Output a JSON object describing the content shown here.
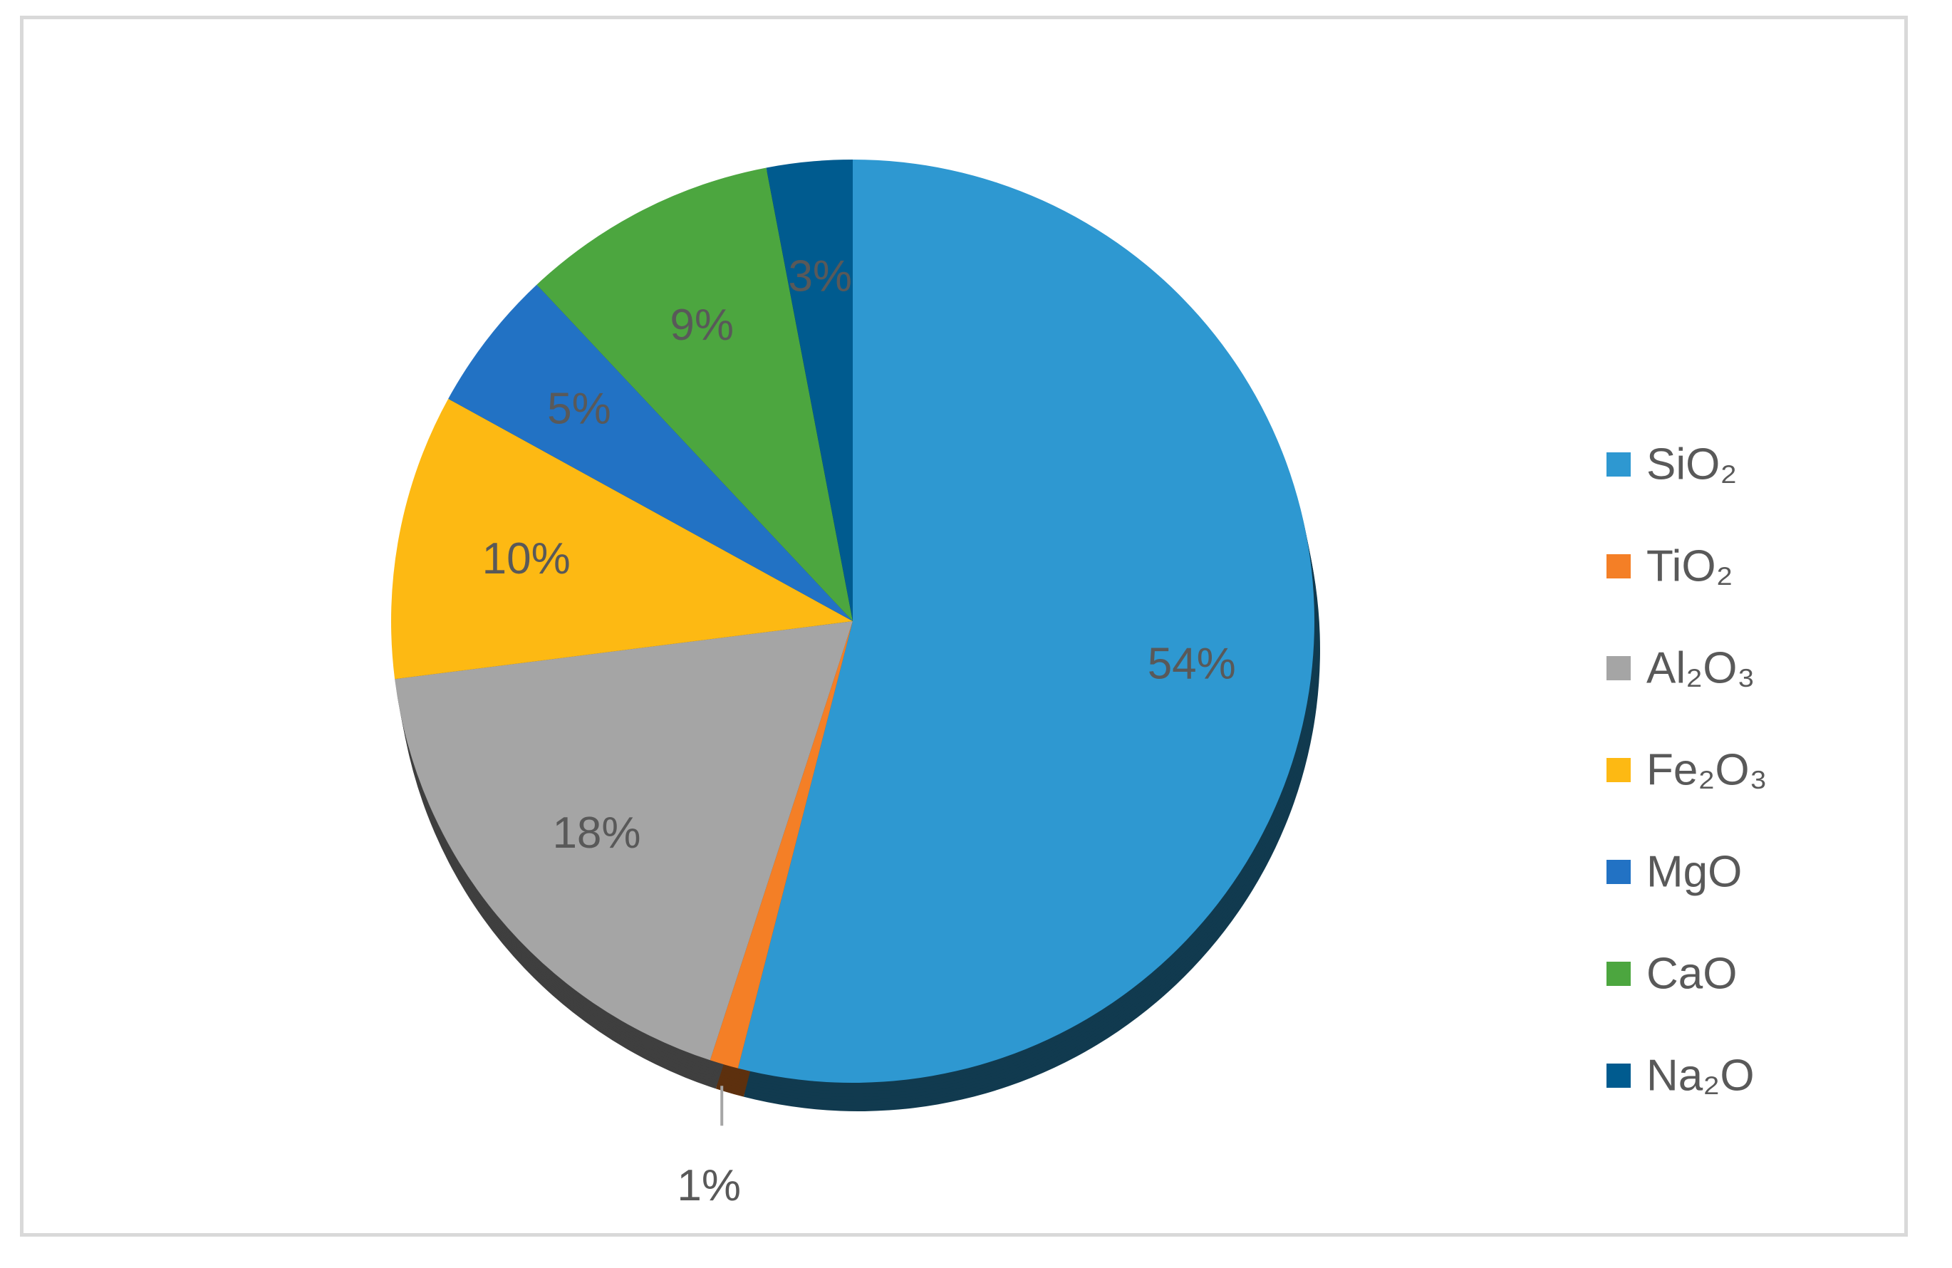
{
  "chart_data": {
    "type": "pie",
    "title": "",
    "legend_position": "right",
    "slices": [
      {
        "name": "SiO₂",
        "value": 54,
        "label": "54%",
        "color": "#2E98D1"
      },
      {
        "name": "TiO₂",
        "value": 1,
        "label": "1%",
        "color": "#F47F26"
      },
      {
        "name": "Al₂O₃",
        "value": 18,
        "label": "18%",
        "color": "#A5A5A5"
      },
      {
        "name": "Fe₂O₃",
        "value": 10,
        "label": "10%",
        "color": "#FDB913"
      },
      {
        "name": "MgO",
        "value": 5,
        "label": "5%",
        "color": "#2272C4"
      },
      {
        "name": "CaO",
        "value": 9,
        "label": "9%",
        "color": "#4CA63F"
      },
      {
        "name": "Na₂O",
        "value": 3,
        "label": "3%",
        "color": "#005B8F"
      }
    ]
  }
}
